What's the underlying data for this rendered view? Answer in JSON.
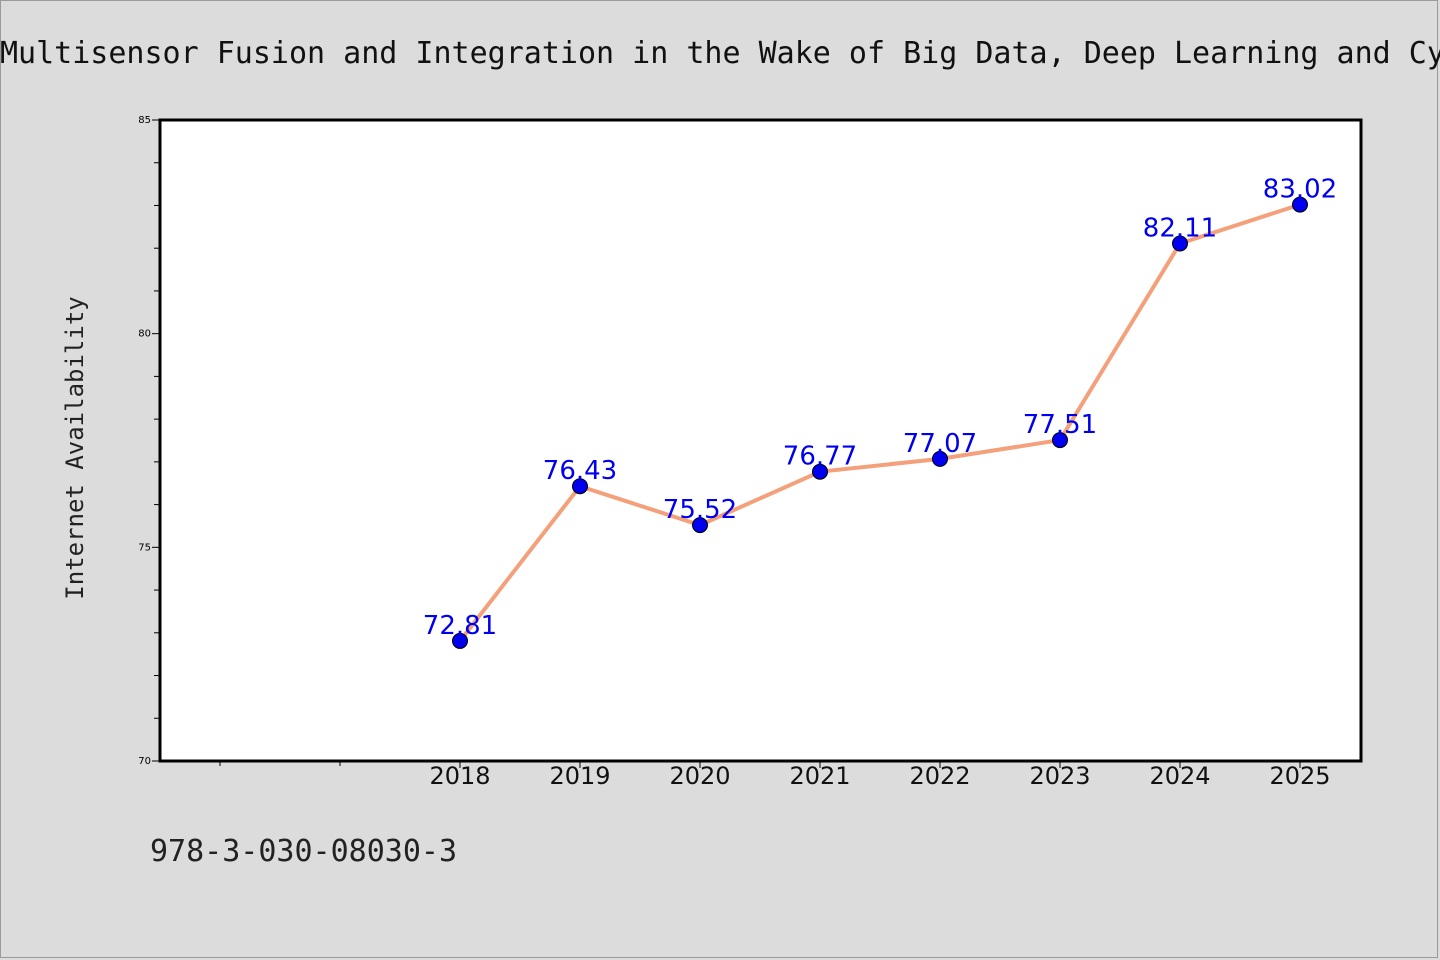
{
  "chart_data": {
    "type": "line",
    "title": "Multisensor Fusion and Integration in the Wake of Big Data, Deep Learning and Cy",
    "xlabel": "",
    "ylabel": "Internet Availability",
    "categories": [
      "2018",
      "2019",
      "2020",
      "2021",
      "2022",
      "2023",
      "2024",
      "2025"
    ],
    "series": [
      {
        "values": [
          72.81,
          76.43,
          75.52,
          76.77,
          77.07,
          77.51,
          82.11,
          83.02
        ],
        "data_labels": [
          "72.81",
          "76.43",
          "75.52",
          "76.77",
          "77.07",
          "77.51",
          "82.11",
          "83.02"
        ]
      }
    ],
    "ylim": [
      70,
      85
    ],
    "yticks": [
      70,
      75,
      80,
      85
    ],
    "ytick_labels": [
      "70",
      "75",
      "80",
      "85"
    ],
    "grid": false,
    "colors": {
      "line": "#f4a07a",
      "marker": "#0000ee",
      "data_label": "#0000ee"
    }
  },
  "footer": {
    "text": "978-3-030-08030-3"
  }
}
